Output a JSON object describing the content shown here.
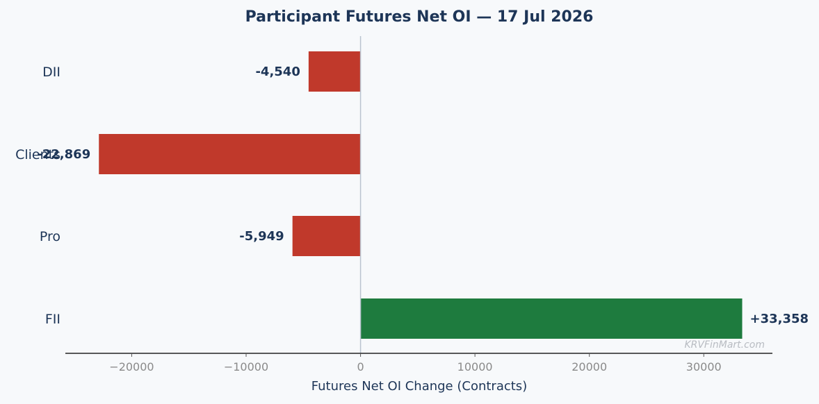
{
  "chart_data": {
    "type": "bar",
    "orientation": "horizontal",
    "title": "Participant Futures Net OI — 17 Jul 2026",
    "xlabel": "Futures Net OI Change (Contracts)",
    "ylabel": "",
    "categories": [
      "DII",
      "Clients",
      "Pro",
      "FII"
    ],
    "values": [
      -4540,
      -22869,
      -5949,
      33358
    ],
    "value_labels": [
      "-4,540",
      "-22,869",
      "-5,949",
      "+33,358"
    ],
    "xlim": [
      -25800,
      36000
    ],
    "xticks": [
      -20000,
      -10000,
      0,
      10000,
      20000,
      30000
    ],
    "xtick_labels": [
      "−20000",
      "−10000",
      "0",
      "10000",
      "20000",
      "30000"
    ],
    "grid": false,
    "colors": {
      "negative": "#c0392b",
      "positive": "#1e7b3e",
      "text": "#1d3557"
    }
  },
  "watermark": "KRVFinMart.com"
}
